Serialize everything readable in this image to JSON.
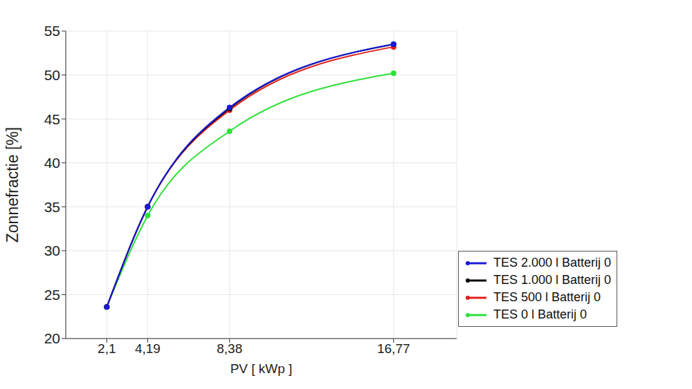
{
  "chart_data": {
    "type": "line",
    "x_label": "PV [ kWp ]",
    "y_label": "Zonnefractie [%]",
    "x": [
      2.1,
      4.19,
      8.38,
      16.77
    ],
    "series": [
      {
        "name": "TES 2.000 l Batterij 0",
        "color": "#1a1ad6",
        "values": [
          23.6,
          35.0,
          46.3,
          53.5
        ]
      },
      {
        "name": "TES 1.000 l Batterij 0",
        "color": "#000000",
        "values": [
          23.6,
          35.0,
          46.2,
          53.5
        ]
      },
      {
        "name": "TES 500 l Batterij 0",
        "color": "#e0201a",
        "values": [
          23.6,
          35.0,
          46.0,
          53.2
        ]
      },
      {
        "name": "TES 0 l Batterij 0",
        "color": "#2ee03a",
        "values": [
          23.6,
          34.0,
          43.6,
          50.2
        ]
      }
    ],
    "xlim": [
      0,
      20
    ],
    "xticks": [
      {
        "value": 2.1,
        "label": "2,1"
      },
      {
        "value": 4.19,
        "label": "4,19"
      },
      {
        "value": 8.38,
        "label": "8,38"
      },
      {
        "value": 16.77,
        "label": "16,77"
      }
    ],
    "ylim": [
      20,
      55
    ],
    "yticks": [
      20,
      25,
      30,
      35,
      40,
      45,
      50,
      55
    ],
    "grid": true,
    "legend": "lower right",
    "marker": "circle",
    "line_style": "solid"
  }
}
